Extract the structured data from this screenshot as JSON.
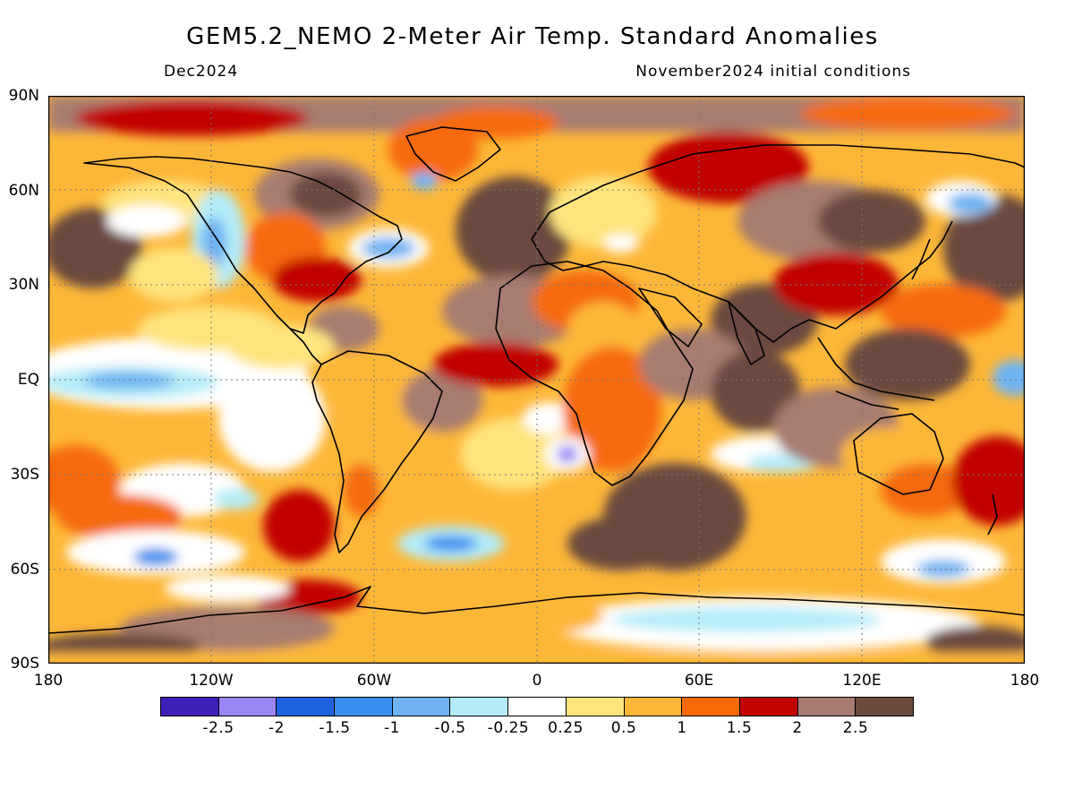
{
  "title": "GEM5.2_NEMO 2-Meter Air Temp. Standard Anomalies",
  "subtitle_left": "Dec2024",
  "subtitle_right": "November2024 initial conditions",
  "lat_labels": [
    "90N",
    "60N",
    "30N",
    "EQ",
    "30S",
    "60S",
    "90S"
  ],
  "lon_labels": [
    "180",
    "120W",
    "60W",
    "0",
    "60E",
    "120E",
    "180"
  ],
  "colorbar": {
    "colors": [
      "#3f1fba",
      "#9b86f5",
      "#1f63e0",
      "#3a8ef0",
      "#6fb3f3",
      "#b4ecf8",
      "#ffffff",
      "#ffe47e",
      "#fdb738",
      "#f56a07",
      "#c10505",
      "#a77b71",
      "#6b4a40"
    ],
    "labels": [
      "-2.5",
      "-2",
      "-1.5",
      "-1",
      "-0.5",
      "-0.25",
      "0.25",
      "0.5",
      "1",
      "1.5",
      "2",
      "2.5"
    ]
  },
  "regions": {
    "warm_belts": "Strong warm anomalies over most continents and mid-latitude oceans",
    "cool_areas": "Cool/near-normal in eastern tropical Pacific, western North America, Southern Ocean"
  }
}
